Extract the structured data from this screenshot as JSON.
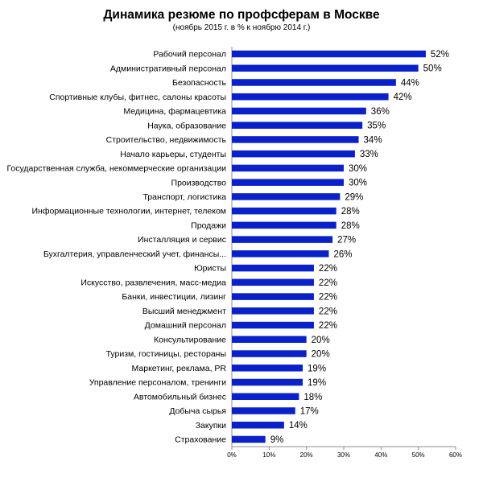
{
  "chart_data": {
    "type": "bar",
    "orientation": "horizontal",
    "title": "Динамика резюме по профсферам в Москве",
    "subtitle": "(ноябрь 2015 г. в % к ноябрю 2014 г.)",
    "categories": [
      "Рабочий персонал",
      "Административный персонал",
      "Безопасность",
      "Спортивные клубы, фитнес, салоны красоты",
      "Медицина, фармацевтика",
      "Наука, образование",
      "Строительство, недвижимость",
      "Начало карьеры, студенты",
      "Государственная служба, некоммерческие организации",
      "Производство",
      "Транспорт, логистика",
      "Информационные технологии, интернет, телеком",
      "Продажи",
      "Инсталляция и сервис",
      "Бухгалтерия, управленческий учет, финансы...",
      "Юристы",
      "Искусство, развлечения, масс-медиа",
      "Банки, инвестиции, лизинг",
      "Высший менеджмент",
      "Домашний персонал",
      "Консультирование",
      "Туризм, гостиницы, рестораны",
      "Маркетинг, реклама, PR",
      "Управление персоналом, тренинги",
      "Автомобильный бизнес",
      "Добыча сырья",
      "Закупки",
      "Страхование"
    ],
    "values": [
      52,
      50,
      44,
      42,
      36,
      35,
      34,
      33,
      30,
      30,
      29,
      28,
      28,
      27,
      26,
      22,
      22,
      22,
      22,
      22,
      20,
      20,
      19,
      19,
      18,
      17,
      14,
      9
    ],
    "value_labels": [
      "52%",
      "50%",
      "44%",
      "42%",
      "36%",
      "35%",
      "34%",
      "33%",
      "30%",
      "30%",
      "29%",
      "28%",
      "28%",
      "27%",
      "26%",
      "22%",
      "22%",
      "22%",
      "22%",
      "22%",
      "20%",
      "20%",
      "19%",
      "19%",
      "18%",
      "17%",
      "14%",
      "9%"
    ],
    "x_ticks": [
      "0%",
      "10%",
      "20%",
      "30%",
      "40%",
      "50%",
      "60%"
    ],
    "xlim": [
      0,
      60
    ],
    "grid": false,
    "bar_color": "#0a20c8"
  }
}
